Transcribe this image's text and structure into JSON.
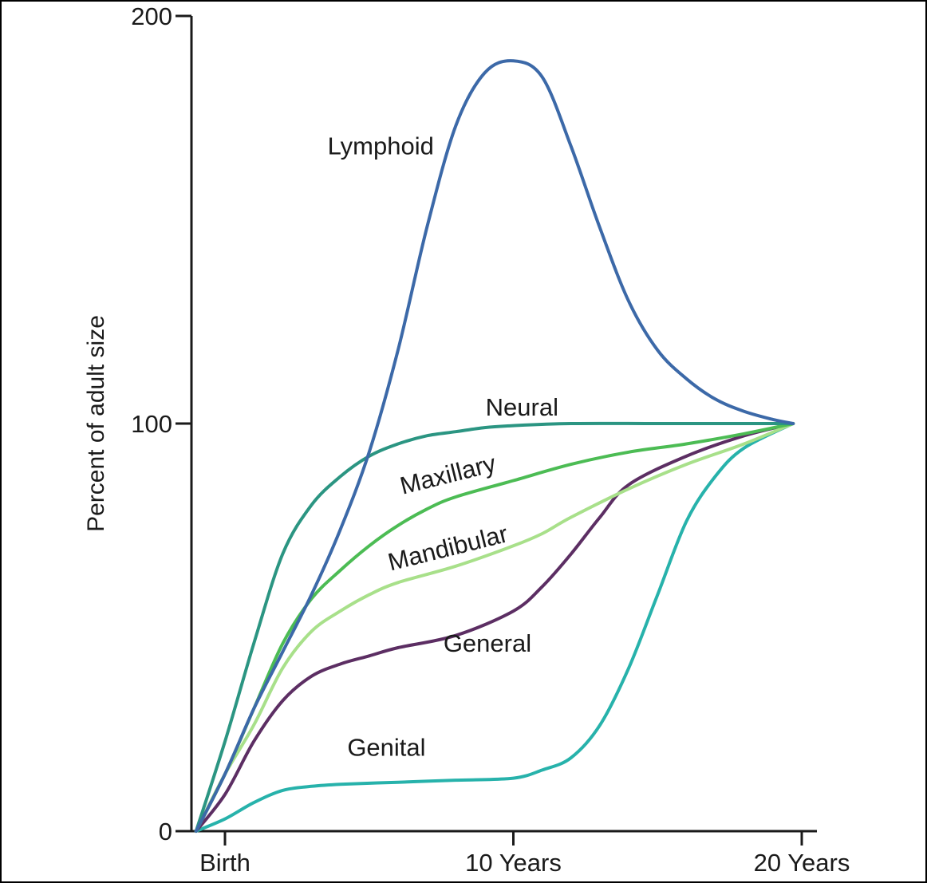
{
  "chart_data": {
    "type": "line",
    "title": "",
    "xlabel": "",
    "ylabel": "Percent of adult size",
    "xlim": [
      -1,
      20.5
    ],
    "ylim": [
      0,
      200
    ],
    "grid": false,
    "legend": "none (labels placed on curves)",
    "x_ticks": [
      {
        "value": 0,
        "label": "Birth"
      },
      {
        "value": 10,
        "label": "10 Years"
      },
      {
        "value": 20,
        "label": "20 Years"
      }
    ],
    "y_ticks": [
      {
        "value": 0,
        "label": "0"
      },
      {
        "value": 100,
        "label": "100"
      },
      {
        "value": 200,
        "label": "200"
      }
    ],
    "series": [
      {
        "name": "Lymphoid",
        "color": "#3c69a8",
        "points": [
          [
            -1,
            0
          ],
          [
            0,
            14
          ],
          [
            1,
            30
          ],
          [
            2,
            44
          ],
          [
            3,
            58
          ],
          [
            4,
            74
          ],
          [
            5,
            93
          ],
          [
            6,
            118
          ],
          [
            7,
            148
          ],
          [
            8,
            173
          ],
          [
            9,
            186
          ],
          [
            10,
            189
          ],
          [
            11,
            185
          ],
          [
            12,
            168
          ],
          [
            13,
            148
          ],
          [
            14,
            130
          ],
          [
            15,
            118
          ],
          [
            16,
            111
          ],
          [
            17,
            106
          ],
          [
            18,
            103
          ],
          [
            19,
            101
          ],
          [
            19.7,
            100
          ]
        ]
      },
      {
        "name": "Neural",
        "color": "#2b9582",
        "points": [
          [
            -1,
            0
          ],
          [
            0,
            22
          ],
          [
            1,
            46
          ],
          [
            2,
            68
          ],
          [
            3,
            80
          ],
          [
            4,
            87
          ],
          [
            5,
            92
          ],
          [
            6,
            95
          ],
          [
            7,
            97
          ],
          [
            8,
            98
          ],
          [
            9,
            99
          ],
          [
            10,
            99.5
          ],
          [
            12,
            100
          ],
          [
            15,
            100
          ],
          [
            18,
            100
          ],
          [
            19.7,
            100
          ]
        ]
      },
      {
        "name": "Maxillary",
        "color": "#4cbc54",
        "points": [
          [
            -1,
            0
          ],
          [
            0,
            14
          ],
          [
            1,
            30
          ],
          [
            2,
            46
          ],
          [
            3,
            57
          ],
          [
            4,
            64
          ],
          [
            5,
            70
          ],
          [
            6,
            75
          ],
          [
            7,
            79
          ],
          [
            8,
            82
          ],
          [
            10,
            86
          ],
          [
            12,
            90
          ],
          [
            14,
            93
          ],
          [
            16,
            95
          ],
          [
            18,
            97.5
          ],
          [
            19.7,
            100
          ]
        ]
      },
      {
        "name": "Mandibular",
        "color": "#a8e08a",
        "points": [
          [
            -1,
            0
          ],
          [
            0,
            14
          ],
          [
            1,
            26
          ],
          [
            2,
            40
          ],
          [
            3,
            49
          ],
          [
            4,
            54
          ],
          [
            5,
            58
          ],
          [
            6,
            61
          ],
          [
            8,
            65
          ],
          [
            10,
            70
          ],
          [
            11,
            73
          ],
          [
            12,
            77
          ],
          [
            14,
            84
          ],
          [
            16,
            90
          ],
          [
            18,
            95
          ],
          [
            19.7,
            100
          ]
        ]
      },
      {
        "name": "General",
        "color": "#5c2e63",
        "points": [
          [
            -1,
            0
          ],
          [
            0,
            9
          ],
          [
            1,
            22
          ],
          [
            2,
            32
          ],
          [
            3,
            38
          ],
          [
            4,
            41
          ],
          [
            5,
            43
          ],
          [
            6,
            45
          ],
          [
            8,
            48
          ],
          [
            10,
            54
          ],
          [
            11,
            60
          ],
          [
            12,
            68
          ],
          [
            13,
            77
          ],
          [
            14,
            85
          ],
          [
            16,
            92
          ],
          [
            18,
            97
          ],
          [
            19.7,
            100
          ]
        ]
      },
      {
        "name": "Genital",
        "color": "#27b2ab",
        "points": [
          [
            -1,
            0
          ],
          [
            0,
            3
          ],
          [
            1,
            7
          ],
          [
            2,
            10
          ],
          [
            3,
            11
          ],
          [
            4,
            11.5
          ],
          [
            6,
            12
          ],
          [
            8,
            12.5
          ],
          [
            10,
            13
          ],
          [
            11,
            15
          ],
          [
            12,
            18
          ],
          [
            13,
            26
          ],
          [
            14,
            40
          ],
          [
            15,
            58
          ],
          [
            16,
            76
          ],
          [
            17,
            87
          ],
          [
            18,
            94
          ],
          [
            19.7,
            100
          ]
        ]
      }
    ],
    "annotations": [
      {
        "text": "Lymphoid",
        "x": 5.4,
        "y": 166,
        "angle": 0
      },
      {
        "text": "Neural",
        "x": 10.3,
        "y": 102,
        "angle": 0
      },
      {
        "text": "Maxillary",
        "x": 7.8,
        "y": 85.5,
        "angle": -14
      },
      {
        "text": "Mandibular",
        "x": 7.8,
        "y": 67.5,
        "angle": -14
      },
      {
        "text": "General",
        "x": 9.1,
        "y": 44,
        "angle": 0
      },
      {
        "text": "Genital",
        "x": 5.6,
        "y": 18.5,
        "angle": 0
      }
    ]
  }
}
